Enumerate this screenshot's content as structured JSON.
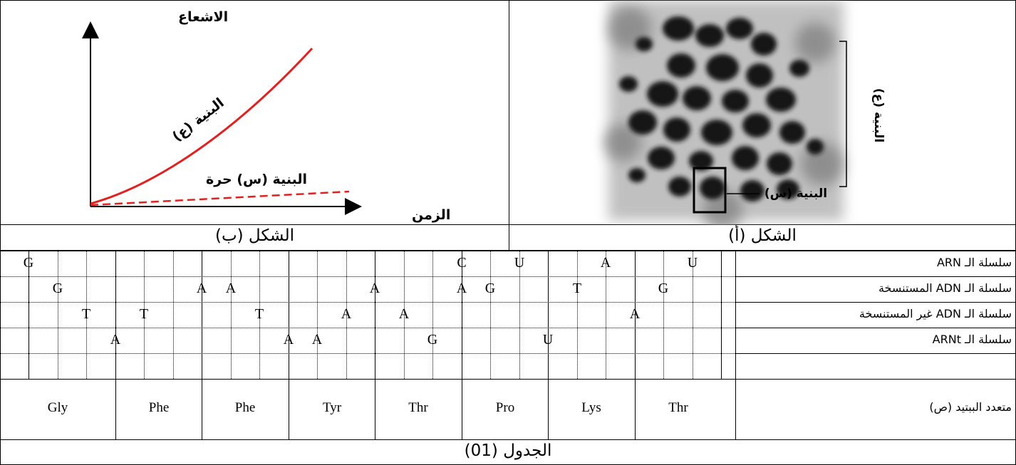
{
  "figure_b": {
    "caption": "الشكل (ب)",
    "y_axis_label": "الاشعاع",
    "x_axis_label": "الزمن",
    "curve_solid_label": "البنية (ع)",
    "curve_dashed_label": "البنية (س) حرة",
    "solid_color": "#e32020",
    "dashed_color": "#e32020"
  },
  "figure_a": {
    "caption": "الشكل (أ)",
    "structure_s_label": "البنية (س)",
    "structure_e_label": "البنية (ع)"
  },
  "table": {
    "caption": "الجدول (01)",
    "rows": [
      {
        "label": "سلسلة الـ ARN",
        "letters": [
          {
            "col": 0,
            "v": "G"
          },
          {
            "col": 15,
            "v": "C"
          },
          {
            "col": 17,
            "v": "U"
          },
          {
            "col": 20,
            "v": "A"
          },
          {
            "col": 23,
            "v": "U"
          }
        ]
      },
      {
        "label": "سلسلة الـ ADN المستنسخة",
        "letters": [
          {
            "col": 1,
            "v": "G"
          },
          {
            "col": 6,
            "v": "A"
          },
          {
            "col": 7,
            "v": "A"
          },
          {
            "col": 12,
            "v": "A"
          },
          {
            "col": 15,
            "v": "A"
          },
          {
            "col": 16,
            "v": "G"
          },
          {
            "col": 19,
            "v": "T"
          },
          {
            "col": 22,
            "v": "G"
          }
        ]
      },
      {
        "label": "سلسلة الـ ADN غير المستنسخة",
        "letters": [
          {
            "col": 2,
            "v": "T"
          },
          {
            "col": 4,
            "v": "T"
          },
          {
            "col": 8,
            "v": "T"
          },
          {
            "col": 11,
            "v": "A"
          },
          {
            "col": 13,
            "v": "A"
          },
          {
            "col": 21,
            "v": "A"
          }
        ]
      },
      {
        "label": "سلسلة الـ ARNt",
        "letters": [
          {
            "col": 3,
            "v": "A"
          },
          {
            "col": 9,
            "v": "A"
          },
          {
            "col": 10,
            "v": "A"
          },
          {
            "col": 14,
            "v": "G"
          },
          {
            "col": 18,
            "v": "U"
          }
        ]
      }
    ],
    "peptide_label": "متعدد الببتيد (ص)",
    "amino_acids": [
      "Gly",
      "Phe",
      "Phe",
      "Tyr",
      "Thr",
      "Pro",
      "Lys",
      "Thr"
    ]
  }
}
